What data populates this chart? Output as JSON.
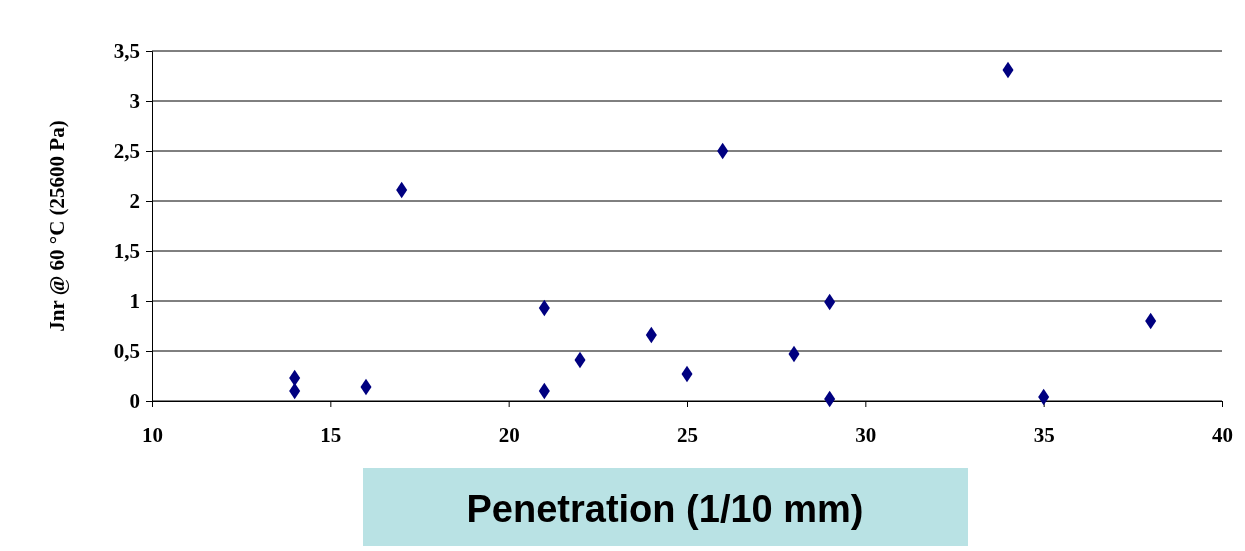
{
  "chart_data": {
    "type": "scatter",
    "xlabel": "Penetration (1/10 mm)",
    "ylabel": "Jnr @ 60 °C (25600 Pa)",
    "x": [
      14,
      14,
      16,
      17,
      21,
      21,
      22,
      24,
      25,
      26,
      28,
      29,
      29,
      34,
      35,
      38
    ],
    "series": [
      {
        "color": "#000080",
        "values": [
          0.23,
          0.1,
          0.14,
          2.11,
          0.93,
          0.1,
          0.41,
          0.66,
          0.27,
          2.5,
          0.47,
          0.99,
          0.02,
          3.31,
          0.04,
          0.8
        ]
      }
    ],
    "xlim": [
      10,
      40
    ],
    "xticks": [
      10,
      15,
      20,
      25,
      30,
      35,
      40
    ],
    "ylim": [
      0,
      3.5
    ],
    "yticks": [
      0,
      {
        "value": 0.5,
        "label": "0,5"
      },
      1,
      {
        "value": 1.5,
        "label": "1,5"
      },
      2,
      {
        "value": 2.5,
        "label": "2,5"
      },
      3,
      {
        "value": 3.5,
        "label": "3,5"
      }
    ],
    "grid": "y",
    "marker": "diamond"
  }
}
